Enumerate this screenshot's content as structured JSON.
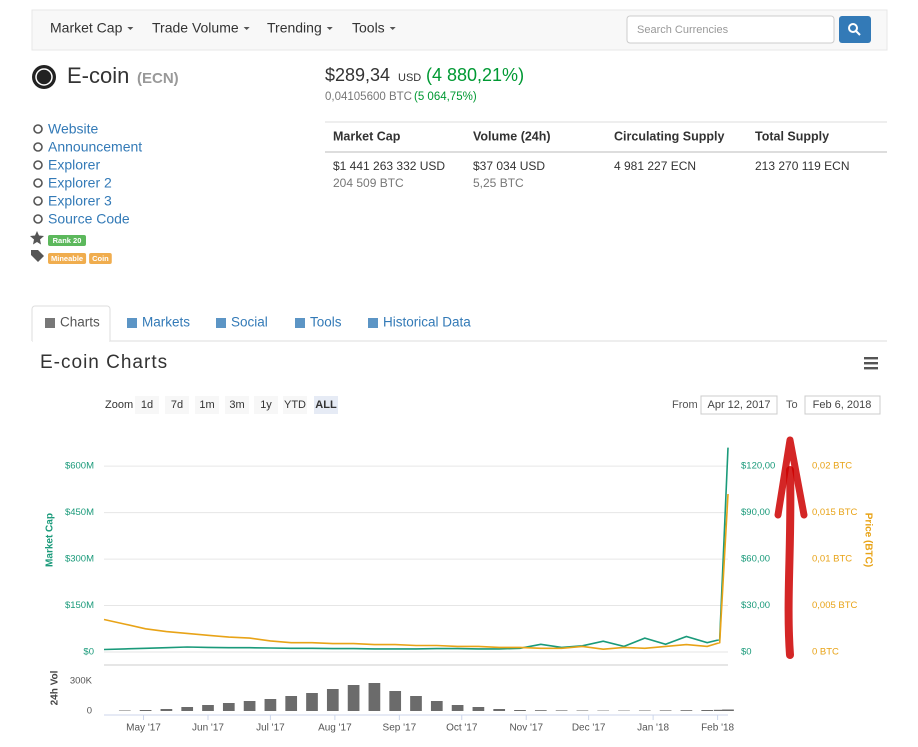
{
  "nav": {
    "items": [
      "Market Cap",
      "Trade Volume",
      "Trending",
      "Tools"
    ],
    "search_placeholder": "Search Currencies"
  },
  "coin": {
    "name": "E-coin",
    "symbol": "(ECN)",
    "price": "$289,34",
    "price_unit": "USD",
    "change": "(4 880,21%)",
    "price_btc": "0,04105600 BTC",
    "change_btc": "(5 064,75%)"
  },
  "links": [
    "Website",
    "Announcement",
    "Explorer",
    "Explorer 2",
    "Explorer 3",
    "Source Code"
  ],
  "rank": "Rank 20",
  "tags": [
    "Mineable",
    "Coin"
  ],
  "stats": {
    "columns": [
      {
        "header": "Market Cap",
        "lines": [
          "$1 441 263 332 USD",
          "204 509 BTC"
        ]
      },
      {
        "header": "Volume (24h)",
        "lines": [
          "$37 034 USD",
          "5,25 BTC"
        ]
      },
      {
        "header": "Circulating Supply",
        "lines": [
          "4 981 227 ECN"
        ]
      },
      {
        "header": "Total Supply",
        "lines": [
          "213 270 119 ECN"
        ]
      }
    ]
  },
  "tabs": [
    "Charts",
    "Markets",
    "Social",
    "Tools",
    "Historical Data"
  ],
  "chart_data": {
    "type": "line",
    "title": "E-coin Charts",
    "zoom_label": "Zoom",
    "zoom_buttons": [
      "1d",
      "7d",
      "1m",
      "3m",
      "1y",
      "YTD",
      "ALL"
    ],
    "zoom_selected": "ALL",
    "from_label": "From",
    "from": "Apr 12, 2017",
    "to_label": "To",
    "to": "Feb 6, 2018",
    "x": [
      0,
      10,
      20,
      30,
      40,
      50,
      60,
      70,
      80,
      90,
      100,
      110,
      120,
      130,
      140,
      150,
      160,
      170,
      180,
      190,
      200,
      210,
      220,
      230,
      240,
      250,
      260,
      270,
      280,
      290,
      296,
      300
    ],
    "xlim": [
      0,
      300
    ],
    "xticks": [
      {
        "value": 19,
        "label": "May '17"
      },
      {
        "value": 50,
        "label": "Jun '17"
      },
      {
        "value": 80,
        "label": "Jul '17"
      },
      {
        "value": 111,
        "label": "Aug '17"
      },
      {
        "value": 142,
        "label": "Sep '17"
      },
      {
        "value": 172,
        "label": "Oct '17"
      },
      {
        "value": 203,
        "label": "Nov '17"
      },
      {
        "value": 233,
        "label": "Dec '17"
      },
      {
        "value": 264,
        "label": "Jan '18"
      },
      {
        "value": 295,
        "label": "Feb '18"
      }
    ],
    "ylim": [
      0,
      720000000
    ],
    "yticks": [
      {
        "value": 0,
        "label": "$0"
      },
      {
        "value": 150000000,
        "label": "$150M"
      },
      {
        "value": 300000000,
        "label": "$300M"
      },
      {
        "value": 450000000,
        "label": "$450M"
      },
      {
        "value": 600000000,
        "label": "$600M"
      }
    ],
    "y2lim": [
      0,
      144
    ],
    "y2ticks": [
      {
        "value": 0,
        "label": "$0"
      },
      {
        "value": 30,
        "label": "$30,00"
      },
      {
        "value": 60,
        "label": "$60,00"
      },
      {
        "value": 90,
        "label": "$90,00"
      },
      {
        "value": 120,
        "label": "$120,00"
      }
    ],
    "y3lim": [
      0,
      0.024
    ],
    "y3ticks": [
      {
        "value": 0,
        "label": "0 BTC"
      },
      {
        "value": 0.005,
        "label": "0,005 BTC"
      },
      {
        "value": 0.01,
        "label": "0,01 BTC"
      },
      {
        "value": 0.015,
        "label": "0,015 BTC"
      },
      {
        "value": 0.02,
        "label": "0,02 BTC"
      }
    ],
    "vol_lim": [
      0,
      460000
    ],
    "vol_ticks": [
      0,
      {
        "value": 300000,
        "label": "300K"
      }
    ],
    "grid": true,
    "series": [
      {
        "name": "Market Cap",
        "color": "#1a9a7a",
        "axis": "y",
        "values": [
          8000000,
          10000000,
          12000000,
          14000000,
          16000000,
          15000000,
          14000000,
          14000000,
          13000000,
          12000000,
          12000000,
          11000000,
          11000000,
          10000000,
          10000000,
          10000000,
          11000000,
          11000000,
          10000000,
          10000000,
          12000000,
          25000000,
          15000000,
          20000000,
          35000000,
          18000000,
          45000000,
          25000000,
          50000000,
          30000000,
          40000000,
          660000000
        ]
      },
      {
        "name": "Price (BTC)",
        "color": "#e8a317",
        "axis": "y3",
        "values": [
          0.0035,
          0.003,
          0.0025,
          0.0022,
          0.002,
          0.0018,
          0.0016,
          0.0015,
          0.0012,
          0.001,
          0.001,
          0.0009,
          0.0009,
          0.0008,
          0.0008,
          0.0007,
          0.0007,
          0.0006,
          0.0006,
          0.0005,
          0.0005,
          0.0004,
          0.0004,
          0.0006,
          0.0003,
          0.0005,
          0.0004,
          0.0006,
          0.0008,
          0.0006,
          0.001,
          0.017
        ]
      },
      {
        "name": "24h Vol",
        "color": "#6b6b6b",
        "axis": "vol",
        "values": [
          0,
          5000,
          10000,
          20000,
          40000,
          60000,
          80000,
          100000,
          120000,
          150000,
          180000,
          220000,
          260000,
          280000,
          200000,
          150000,
          100000,
          60000,
          40000,
          20000,
          10000,
          8000,
          6000,
          5000,
          4000,
          4000,
          5000,
          6000,
          8000,
          10000,
          12000,
          15000
        ]
      }
    ]
  }
}
